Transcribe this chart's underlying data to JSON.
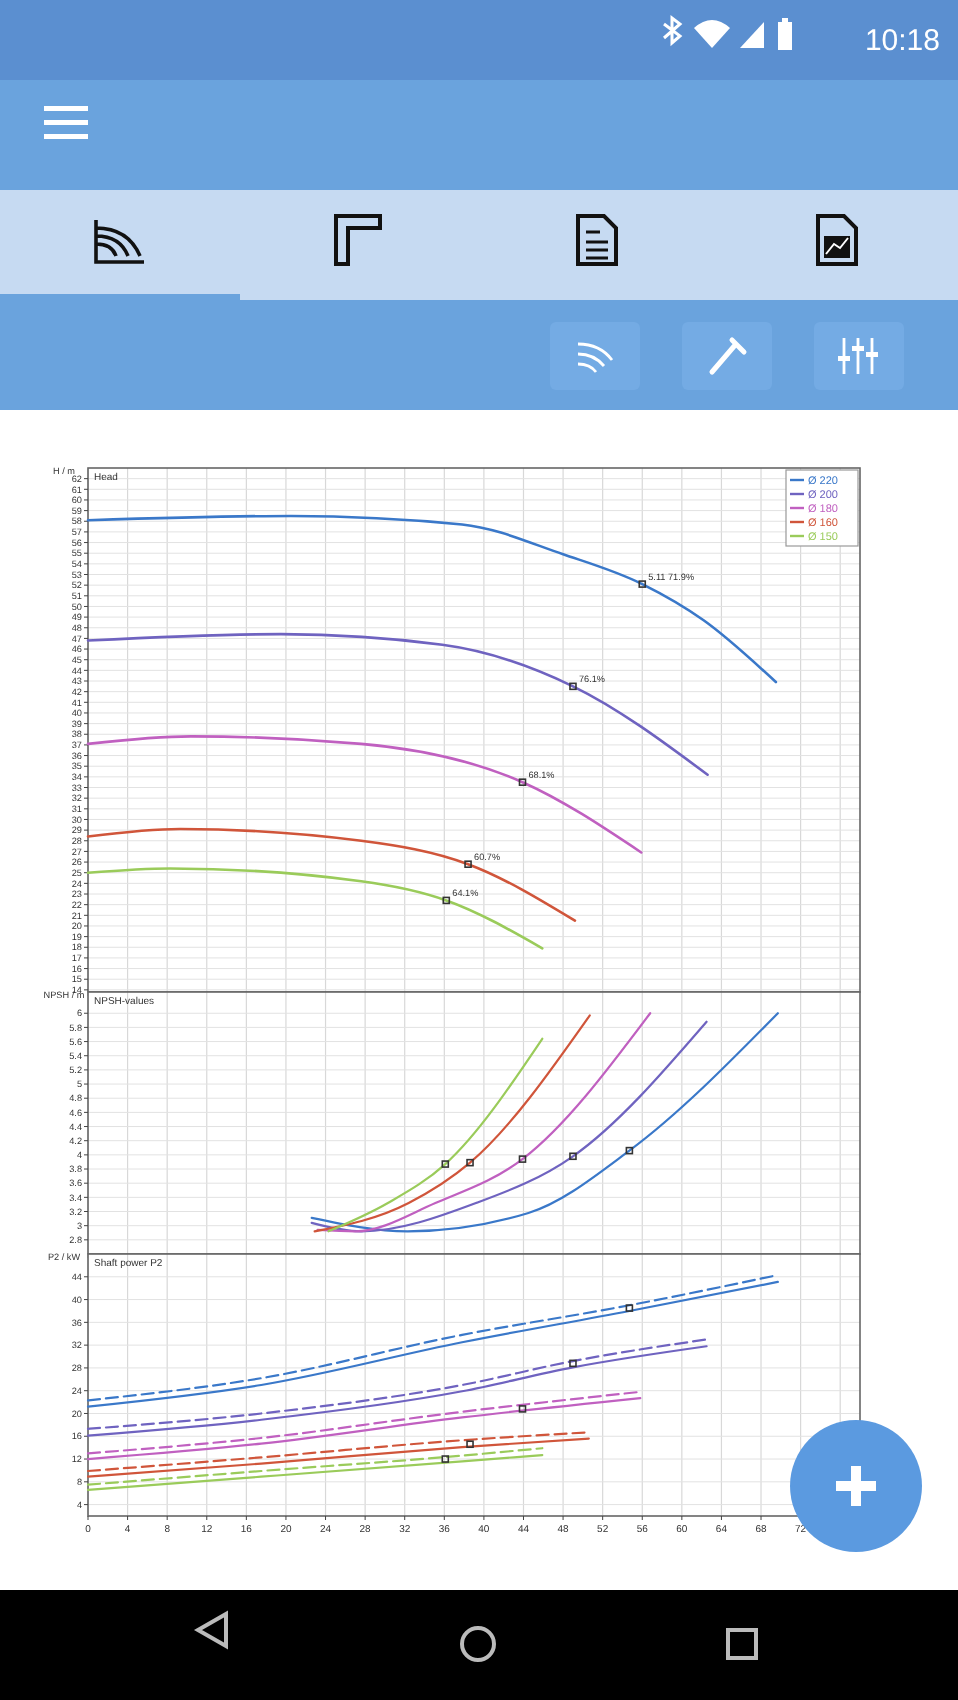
{
  "chart_data": [
    {
      "type": "line",
      "title": "Head",
      "ylabel": "H / m",
      "xlim": [
        0,
        78
      ],
      "xticks": [
        0,
        4,
        8,
        12,
        16,
        20,
        24,
        28,
        32,
        36,
        40,
        44,
        48,
        52,
        56,
        60,
        64,
        68,
        72,
        76
      ],
      "ylim": [
        13.8,
        63
      ],
      "yticks": [
        14,
        15,
        16,
        17,
        18,
        19,
        20,
        21,
        22,
        23,
        24,
        25,
        26,
        27,
        28,
        29,
        30,
        31,
        32,
        33,
        34,
        35,
        36,
        37,
        38,
        39,
        40,
        41,
        42,
        43,
        44,
        45,
        46,
        47,
        48,
        49,
        50,
        51,
        52,
        53,
        54,
        55,
        56,
        57,
        58,
        59,
        60,
        61,
        62
      ],
      "grid": true,
      "tick_labels": "y",
      "legend": "top right",
      "annotations": [
        "10:18",
        {
          "text": "5.11 71.9%",
          "x": 56,
          "y": 52.1
        },
        {
          "text": "76.1%",
          "x": 49,
          "y": 42.5
        },
        {
          "text": "68.1%",
          "x": 43.9,
          "y": 33.5
        },
        {
          "text": "60.7%",
          "x": 38.4,
          "y": 25.8
        },
        {
          "text": "64.1%",
          "x": 36.2,
          "y": 22.4
        }
      ],
      "series": [
        {
          "name": "Ø 220",
          "color": "#3a78c9",
          "x": [
            0,
            20.5,
            37.8,
            48,
            56,
            62.2,
            69.5
          ],
          "values": [
            58.1,
            58.5,
            57.7,
            54.9,
            52.1,
            48.7,
            42.9
          ]
        },
        {
          "name": "Ø 200",
          "color": "#6f63c0",
          "x": [
            0,
            19.5,
            35.8,
            49,
            62.6
          ],
          "values": [
            46.8,
            47.4,
            46.4,
            42.5,
            34.2
          ]
        },
        {
          "name": "Ø 180",
          "color": "#c060c0",
          "x": [
            0,
            10.4,
            27.6,
            43.9,
            55.9
          ],
          "values": [
            37.1,
            37.8,
            37.1,
            33.5,
            26.9
          ]
        },
        {
          "name": "Ø 160",
          "color": "#d0553a",
          "x": [
            0,
            9.3,
            27.6,
            38.4,
            49.2
          ],
          "values": [
            28.4,
            29.1,
            28,
            25.8,
            20.5
          ]
        },
        {
          "name": "Ø 150",
          "color": "#9acb5a",
          "x": [
            0,
            8.3,
            27.6,
            36.2,
            45.9
          ],
          "values": [
            25,
            25.4,
            24.2,
            22.4,
            17.9
          ]
        },
        {
          "type": "scatter",
          "marker": "square",
          "color": "#333333",
          "x": [
            56,
            49,
            43.9,
            38.4,
            36.2
          ],
          "values": [
            52.1,
            42.5,
            33.5,
            25.8,
            22.4
          ]
        }
      ]
    },
    {
      "type": "line",
      "title": "NPSH-values",
      "ylabel": "NPSH / m",
      "xlim": [
        0,
        78
      ],
      "xticks": [
        0,
        4,
        8,
        12,
        16,
        20,
        24,
        28,
        32,
        36,
        40,
        44,
        48,
        52,
        56,
        60,
        64,
        68,
        72,
        76
      ],
      "ylim": [
        2.6,
        6.3
      ],
      "yticks": [
        2.8,
        3,
        3.2,
        3.4,
        3.6,
        3.8,
        4,
        4.2,
        4.4,
        4.6,
        4.8,
        5,
        5.2,
        5.4,
        5.6,
        5.8,
        6
      ],
      "grid": true,
      "tick_labels": "y",
      "series": [
        {
          "color": "#3a78c9",
          "x": [
            22.6,
            32.3,
            44.5,
            54.7,
            69.7
          ],
          "values": [
            3.11,
            2.92,
            3.18,
            4.06,
            6
          ]
        },
        {
          "color": "#6f63c0",
          "x": [
            22.6,
            27.6,
            39.2,
            49,
            62.5
          ],
          "values": [
            3.04,
            2.92,
            3.32,
            3.98,
            5.88
          ]
        },
        {
          "color": "#c060c0",
          "x": [
            23.2,
            27,
            35.1,
            43.9,
            56.8
          ],
          "values": [
            2.94,
            2.92,
            3.32,
            3.94,
            6
          ]
        },
        {
          "color": "#d0553a",
          "x": [
            22.9,
            32.4,
            38.6,
            50.7
          ],
          "values": [
            2.92,
            3.32,
            3.89,
            5.97
          ]
        },
        {
          "color": "#9acb5a",
          "x": [
            24.3,
            30.3,
            36.1,
            45.9
          ],
          "values": [
            2.92,
            3.32,
            3.87,
            5.64
          ]
        },
        {
          "type": "scatter",
          "marker": "square",
          "color": "#333333",
          "x": [
            54.7,
            49,
            43.9,
            38.6,
            36.1
          ],
          "values": [
            4.06,
            3.98,
            3.94,
            3.89,
            3.87
          ]
        }
      ]
    },
    {
      "type": "line",
      "title": "Shaft power P2",
      "ylabel": "P2 / kW",
      "xlim": [
        0,
        78
      ],
      "xticks": [
        0,
        4,
        8,
        12,
        16,
        20,
        24,
        28,
        32,
        36,
        40,
        44,
        48,
        52,
        56,
        60,
        64,
        68,
        72,
        {
          "value": 76,
          "label": null
        }
      ],
      "ylim": [
        2,
        48
      ],
      "yticks": [
        4,
        8,
        12,
        16,
        20,
        24,
        28,
        32,
        36,
        40,
        44
      ],
      "grid": true,
      "series": [
        {
          "color": "#3a78c9",
          "x": [
            0,
            17.5,
            37.8,
            54.7,
            69.7
          ],
          "values": [
            21.2,
            25,
            32.5,
            38,
            43.1
          ]
        },
        {
          "color": "#3a78c9",
          "line_style": "dashed",
          "x": [
            0,
            17.5,
            37.8,
            54.7,
            69.7
          ],
          "values": [
            22.3,
            26.2,
            33.8,
            39,
            44.3
          ]
        },
        {
          "color": "#6f63c0",
          "x": [
            0,
            17.5,
            37.8,
            49,
            62.5
          ],
          "values": [
            16.1,
            18.9,
            23.9,
            28.1,
            31.8
          ]
        },
        {
          "color": "#6f63c0",
          "line_style": "dashed",
          "x": [
            0,
            17.5,
            37.8,
            49,
            62.5
          ],
          "values": [
            17.3,
            20,
            25,
            29.2,
            33
          ]
        },
        {
          "color": "#c060c0",
          "x": [
            0,
            17.5,
            37.8,
            55.8
          ],
          "values": [
            12,
            14.7,
            19.3,
            22.7
          ]
        },
        {
          "color": "#c060c0",
          "line_style": "dashed",
          "x": [
            0,
            17.5,
            37.8,
            55.8
          ],
          "values": [
            13,
            15.7,
            20.3,
            23.8
          ]
        },
        {
          "color": "#d0553a",
          "x": [
            0,
            17.5,
            37.8,
            50.6
          ],
          "values": [
            8.9,
            11.2,
            14.1,
            15.6
          ]
        },
        {
          "color": "#d0553a",
          "line_style": "dashed",
          "x": [
            0,
            17.5,
            37.8,
            50.6
          ],
          "values": [
            9.9,
            12.3,
            15.3,
            16.7
          ]
        },
        {
          "color": "#9acb5a",
          "x": [
            0,
            17.5,
            37.8,
            45.9
          ],
          "values": [
            6.6,
            8.9,
            11.6,
            12.7
          ]
        },
        {
          "color": "#9acb5a",
          "line_style": "dashed",
          "x": [
            0,
            17.5,
            37.8,
            45.9
          ],
          "values": [
            7.5,
            9.9,
            12.6,
            13.9
          ]
        },
        {
          "type": "scatter",
          "marker": "square",
          "color": "#333333",
          "x": [
            54.7,
            49,
            43.9,
            38.6,
            36.1
          ],
          "values": [
            38.5,
            28.8,
            20.8,
            14.6,
            12
          ]
        }
      ]
    }
  ]
}
